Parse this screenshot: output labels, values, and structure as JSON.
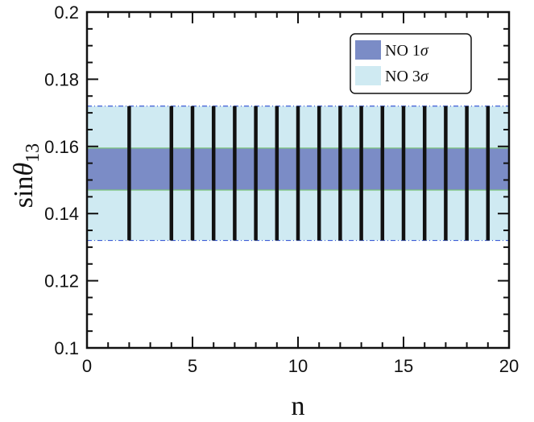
{
  "chart_data": {
    "type": "band-plot",
    "xlabel": "n",
    "ylabel": {
      "prefix": "sin",
      "symbol": "θ",
      "subscript": "13"
    },
    "xlim": [
      0,
      20
    ],
    "ylim": [
      0.1,
      0.2
    ],
    "x_ticks": [
      0,
      5,
      10,
      15,
      20
    ],
    "y_ticks": [
      0.1,
      0.12,
      0.14,
      0.16,
      0.18,
      0.2
    ],
    "x_tick_labels": [
      "0",
      "5",
      "10",
      "15",
      "20"
    ],
    "y_tick_labels": [
      "0.1",
      "0.12",
      "0.14",
      "0.16",
      "0.18",
      "0.2"
    ],
    "bands": [
      {
        "name": "NO 3σ",
        "label_text": "NO 3",
        "label_symbol": "σ",
        "y_range": [
          0.132,
          0.172
        ],
        "fill": "#cfeaf2",
        "edge": "#3b5bd6"
      },
      {
        "name": "NO 1σ",
        "label_text": "NO 1",
        "label_symbol": "σ",
        "y_range": [
          0.147,
          0.1595
        ],
        "fill": "#7b8cc6",
        "edge": "#7cc47a"
      }
    ],
    "vertical_lines": {
      "x": [
        2,
        4,
        5,
        6,
        7,
        8,
        9,
        10,
        11,
        12,
        13,
        14,
        15,
        16,
        17,
        18,
        19
      ],
      "y_range": [
        0.132,
        0.172
      ],
      "color": "#111111"
    },
    "legend": {
      "placement": "top-right",
      "entries": [
        {
          "text": "NO 1",
          "symbol": "σ",
          "color": "#7b8cc6"
        },
        {
          "text": "NO 3",
          "symbol": "σ",
          "color": "#cfeaf2"
        }
      ]
    }
  }
}
